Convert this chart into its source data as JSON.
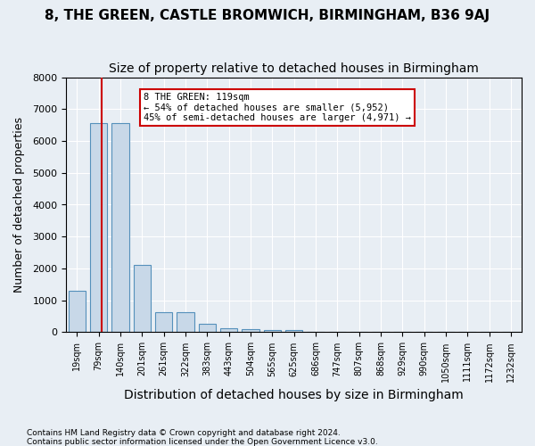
{
  "title1": "8, THE GREEN, CASTLE BROMWICH, BIRMINGHAM, B36 9AJ",
  "title2": "Size of property relative to detached houses in Birmingham",
  "xlabel": "Distribution of detached houses by size in Birmingham",
  "ylabel": "Number of detached properties",
  "footnote1": "Contains HM Land Registry data © Crown copyright and database right 2024.",
  "footnote2": "Contains public sector information licensed under the Open Government Licence v3.0.",
  "categories": [
    "19sqm",
    "79sqm",
    "140sqm",
    "201sqm",
    "261sqm",
    "322sqm",
    "383sqm",
    "443sqm",
    "504sqm",
    "565sqm",
    "625sqm",
    "686sqm",
    "747sqm",
    "807sqm",
    "868sqm",
    "929sqm",
    "990sqm",
    "1050sqm",
    "1111sqm",
    "1172sqm",
    "1232sqm"
  ],
  "values": [
    1300,
    6550,
    6550,
    2100,
    620,
    620,
    260,
    130,
    100,
    60,
    60,
    0,
    0,
    0,
    0,
    0,
    0,
    0,
    0,
    0,
    0
  ],
  "bar_color": "#c8d8e8",
  "bar_edge_color": "#5590bb",
  "property_line_color": "#cc0000",
  "annotation_text": "8 THE GREEN: 119sqm\n← 54% of detached houses are smaller (5,952)\n45% of semi-detached houses are larger (4,971) →",
  "annotation_box_color": "#cc0000",
  "ylim": [
    0,
    8000
  ],
  "yticks": [
    0,
    1000,
    2000,
    3000,
    4000,
    5000,
    6000,
    7000,
    8000
  ],
  "background_color": "#e8eef4",
  "grid_color": "#ffffff",
  "title1_fontsize": 11,
  "title2_fontsize": 10,
  "xlabel_fontsize": 10,
  "ylabel_fontsize": 9
}
